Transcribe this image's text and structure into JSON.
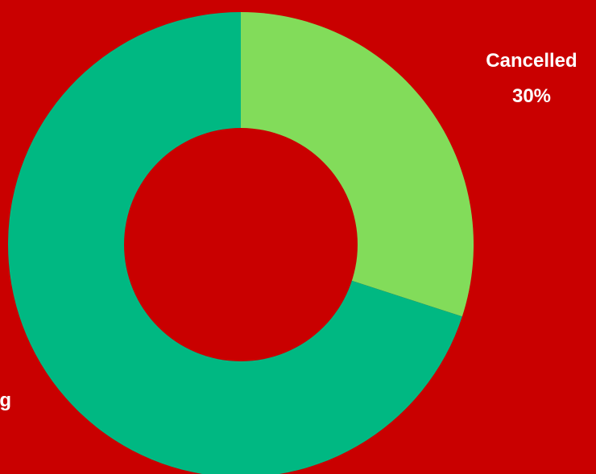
{
  "chart_data": {
    "type": "pie",
    "donut": true,
    "background_color": "#c90000",
    "slices": [
      {
        "label": "Cancelled",
        "percent_label": "30%",
        "value": 30,
        "color": "#82dc5a"
      },
      {
        "label": "g",
        "percent_label": "",
        "value": 70,
        "color": "#00b882"
      }
    ]
  }
}
